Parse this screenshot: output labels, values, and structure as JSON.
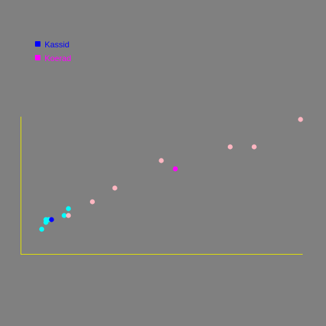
{
  "chart_data": {
    "type": "scatter",
    "title": "",
    "xlabel": "",
    "ylabel": "",
    "grid": false,
    "legend_position": "top-left",
    "axis_color": "#e6e600",
    "background": "#808080",
    "xlim": [
      0,
      20
    ],
    "ylim": [
      0,
      10
    ],
    "series": [
      {
        "name": "Kassid",
        "legend_color": "#0000ff",
        "points": [
          {
            "x": 1.5,
            "y": 1.8,
            "color": "#00ffff"
          },
          {
            "x": 1.8,
            "y": 2.3,
            "color": "#00ffff"
          },
          {
            "x": 1.8,
            "y": 2.5,
            "color": "#00ffff"
          },
          {
            "x": 2.0,
            "y": 2.5,
            "color": "#00ffff"
          },
          {
            "x": 2.2,
            "y": 2.5,
            "color": "#0000ff"
          },
          {
            "x": 3.1,
            "y": 2.8,
            "color": "#00ffff"
          },
          {
            "x": 3.4,
            "y": 3.3,
            "color": "#00ffff"
          }
        ]
      },
      {
        "name": "Koerad",
        "legend_color": "#ff00ff",
        "points": [
          {
            "x": 3.4,
            "y": 2.8,
            "color": "#ffb6c1"
          },
          {
            "x": 5.1,
            "y": 3.8,
            "color": "#ffb6c1"
          },
          {
            "x": 6.7,
            "y": 4.8,
            "color": "#ffb6c1"
          },
          {
            "x": 10.0,
            "y": 6.8,
            "color": "#ffb6c1"
          },
          {
            "x": 11.0,
            "y": 6.2,
            "color": "#ff00ff"
          },
          {
            "x": 14.9,
            "y": 7.8,
            "color": "#ffb6c1"
          },
          {
            "x": 16.6,
            "y": 7.8,
            "color": "#ffb6c1"
          },
          {
            "x": 19.9,
            "y": 9.8,
            "color": "#ffb6c1"
          }
        ]
      }
    ]
  }
}
